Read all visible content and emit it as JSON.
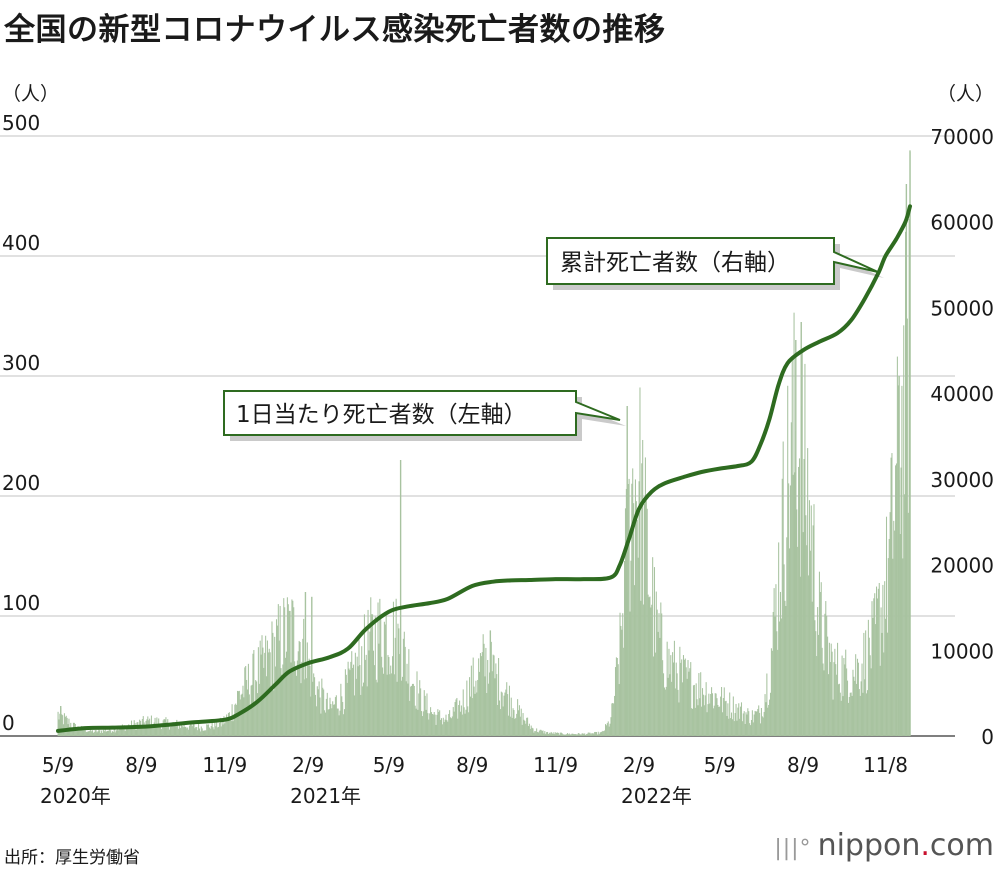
{
  "title": "全国の新型コロナウイルス感染死亡者数の推移",
  "source": "出所：厚生労働省",
  "brand": {
    "prefix": "nippon",
    "dot": ".",
    "suffix": "com",
    "mark": "|||°"
  },
  "chart_data": {
    "type": "bar+line",
    "left_axis": {
      "unit": "（人）",
      "ticks": [
        0,
        100,
        200,
        300,
        400,
        500
      ],
      "ylim": [
        0,
        500
      ]
    },
    "right_axis": {
      "unit": "（人）",
      "ticks": [
        0,
        10000,
        20000,
        30000,
        40000,
        50000,
        60000,
        70000
      ],
      "ylim": [
        0,
        70000
      ]
    },
    "x_ticks": [
      {
        "label": "5/9",
        "day": 0
      },
      {
        "label": "8/9",
        "day": 92
      },
      {
        "label": "11/9",
        "day": 184
      },
      {
        "label": "2/9",
        "day": 276
      },
      {
        "label": "5/9",
        "day": 365
      },
      {
        "label": "8/9",
        "day": 457
      },
      {
        "label": "11/9",
        "day": 549
      },
      {
        "label": "2/9",
        "day": 641
      },
      {
        "label": "5/9",
        "day": 730
      },
      {
        "label": "8/9",
        "day": 822
      },
      {
        "label": "11/8",
        "day": 913
      }
    ],
    "year_labels": [
      {
        "label": "2020年",
        "day": 0
      },
      {
        "label": "2021年",
        "day": 276
      },
      {
        "label": "2022年",
        "day": 641
      }
    ],
    "series": [
      {
        "name": "1日当たり死亡者数（左軸）",
        "axis": "left",
        "kind": "bar",
        "color": "#a8c3a0",
        "anchors": [
          [
            0,
            20
          ],
          [
            20,
            8
          ],
          [
            40,
            4
          ],
          [
            60,
            6
          ],
          [
            80,
            10
          ],
          [
            100,
            14
          ],
          [
            120,
            12
          ],
          [
            140,
            10
          ],
          [
            160,
            8
          ],
          [
            180,
            12
          ],
          [
            190,
            20
          ],
          [
            200,
            40
          ],
          [
            215,
            55
          ],
          [
            230,
            70
          ],
          [
            245,
            90
          ],
          [
            255,
            100
          ],
          [
            265,
            95
          ],
          [
            275,
            70
          ],
          [
            285,
            45
          ],
          [
            300,
            25
          ],
          [
            315,
            40
          ],
          [
            330,
            65
          ],
          [
            345,
            90
          ],
          [
            360,
            100
          ],
          [
            372,
            95
          ],
          [
            385,
            70
          ],
          [
            400,
            35
          ],
          [
            415,
            20
          ],
          [
            430,
            15
          ],
          [
            445,
            30
          ],
          [
            460,
            55
          ],
          [
            470,
            70
          ],
          [
            480,
            60
          ],
          [
            495,
            40
          ],
          [
            510,
            20
          ],
          [
            525,
            6
          ],
          [
            540,
            3
          ],
          [
            560,
            2
          ],
          [
            580,
            2
          ],
          [
            600,
            3
          ],
          [
            610,
            15
          ],
          [
            620,
            80
          ],
          [
            628,
            180
          ],
          [
            635,
            240
          ],
          [
            642,
            235
          ],
          [
            650,
            170
          ],
          [
            660,
            100
          ],
          [
            672,
            70
          ],
          [
            690,
            55
          ],
          [
            710,
            45
          ],
          [
            730,
            35
          ],
          [
            750,
            25
          ],
          [
            765,
            18
          ],
          [
            775,
            22
          ],
          [
            785,
            60
          ],
          [
            795,
            150
          ],
          [
            803,
            230
          ],
          [
            812,
            280
          ],
          [
            820,
            270
          ],
          [
            830,
            200
          ],
          [
            840,
            110
          ],
          [
            855,
            65
          ],
          [
            870,
            58
          ],
          [
            885,
            65
          ],
          [
            900,
            90
          ],
          [
            915,
            150
          ],
          [
            925,
            240
          ],
          [
            935,
            330
          ],
          [
            940,
            390
          ]
        ],
        "spikes": [
          [
            3,
            25
          ],
          [
            273,
            120
          ],
          [
            280,
            116
          ],
          [
            378,
            230
          ],
          [
            477,
            88
          ],
          [
            628,
            275
          ],
          [
            814,
            330
          ],
          [
            820,
            345
          ],
          [
            928,
            300
          ],
          [
            936,
            460
          ],
          [
            940,
            488
          ]
        ],
        "peak_labels": [
          {
            "day": 378,
            "value": 229
          },
          {
            "day": 628,
            "value": 276
          },
          {
            "day": 820,
            "value": 347
          },
          {
            "day": 940,
            "value": 489
          }
        ]
      },
      {
        "name": "累計死亡者数（右軸）",
        "axis": "right",
        "kind": "line",
        "color": "#2e6b20",
        "points": [
          [
            0,
            600
          ],
          [
            30,
            920
          ],
          [
            60,
            980
          ],
          [
            92,
            1070
          ],
          [
            120,
            1300
          ],
          [
            150,
            1600
          ],
          [
            184,
            1900
          ],
          [
            200,
            2600
          ],
          [
            220,
            4000
          ],
          [
            240,
            6000
          ],
          [
            255,
            7500
          ],
          [
            276,
            8500
          ],
          [
            300,
            9200
          ],
          [
            320,
            10200
          ],
          [
            340,
            12500
          ],
          [
            365,
            14500
          ],
          [
            385,
            15100
          ],
          [
            410,
            15500
          ],
          [
            430,
            16000
          ],
          [
            457,
            17500
          ],
          [
            480,
            18000
          ],
          [
            500,
            18150
          ],
          [
            520,
            18200
          ],
          [
            549,
            18300
          ],
          [
            580,
            18300
          ],
          [
            610,
            18500
          ],
          [
            620,
            20000
          ],
          [
            630,
            23000
          ],
          [
            641,
            26500
          ],
          [
            655,
            28500
          ],
          [
            670,
            29500
          ],
          [
            690,
            30200
          ],
          [
            710,
            30800
          ],
          [
            730,
            31200
          ],
          [
            750,
            31500
          ],
          [
            765,
            32000
          ],
          [
            775,
            34000
          ],
          [
            785,
            37000
          ],
          [
            795,
            41000
          ],
          [
            805,
            43500
          ],
          [
            822,
            45000
          ],
          [
            840,
            46000
          ],
          [
            860,
            47000
          ],
          [
            875,
            48500
          ],
          [
            890,
            51000
          ],
          [
            905,
            54000
          ],
          [
            913,
            56000
          ],
          [
            925,
            58000
          ],
          [
            935,
            60000
          ],
          [
            940,
            61800
          ]
        ]
      }
    ],
    "annotations": {
      "daily_label": "1日当たり死亡者数（左軸）",
      "cumulative_label": "累計死亡者数（右軸）"
    }
  }
}
